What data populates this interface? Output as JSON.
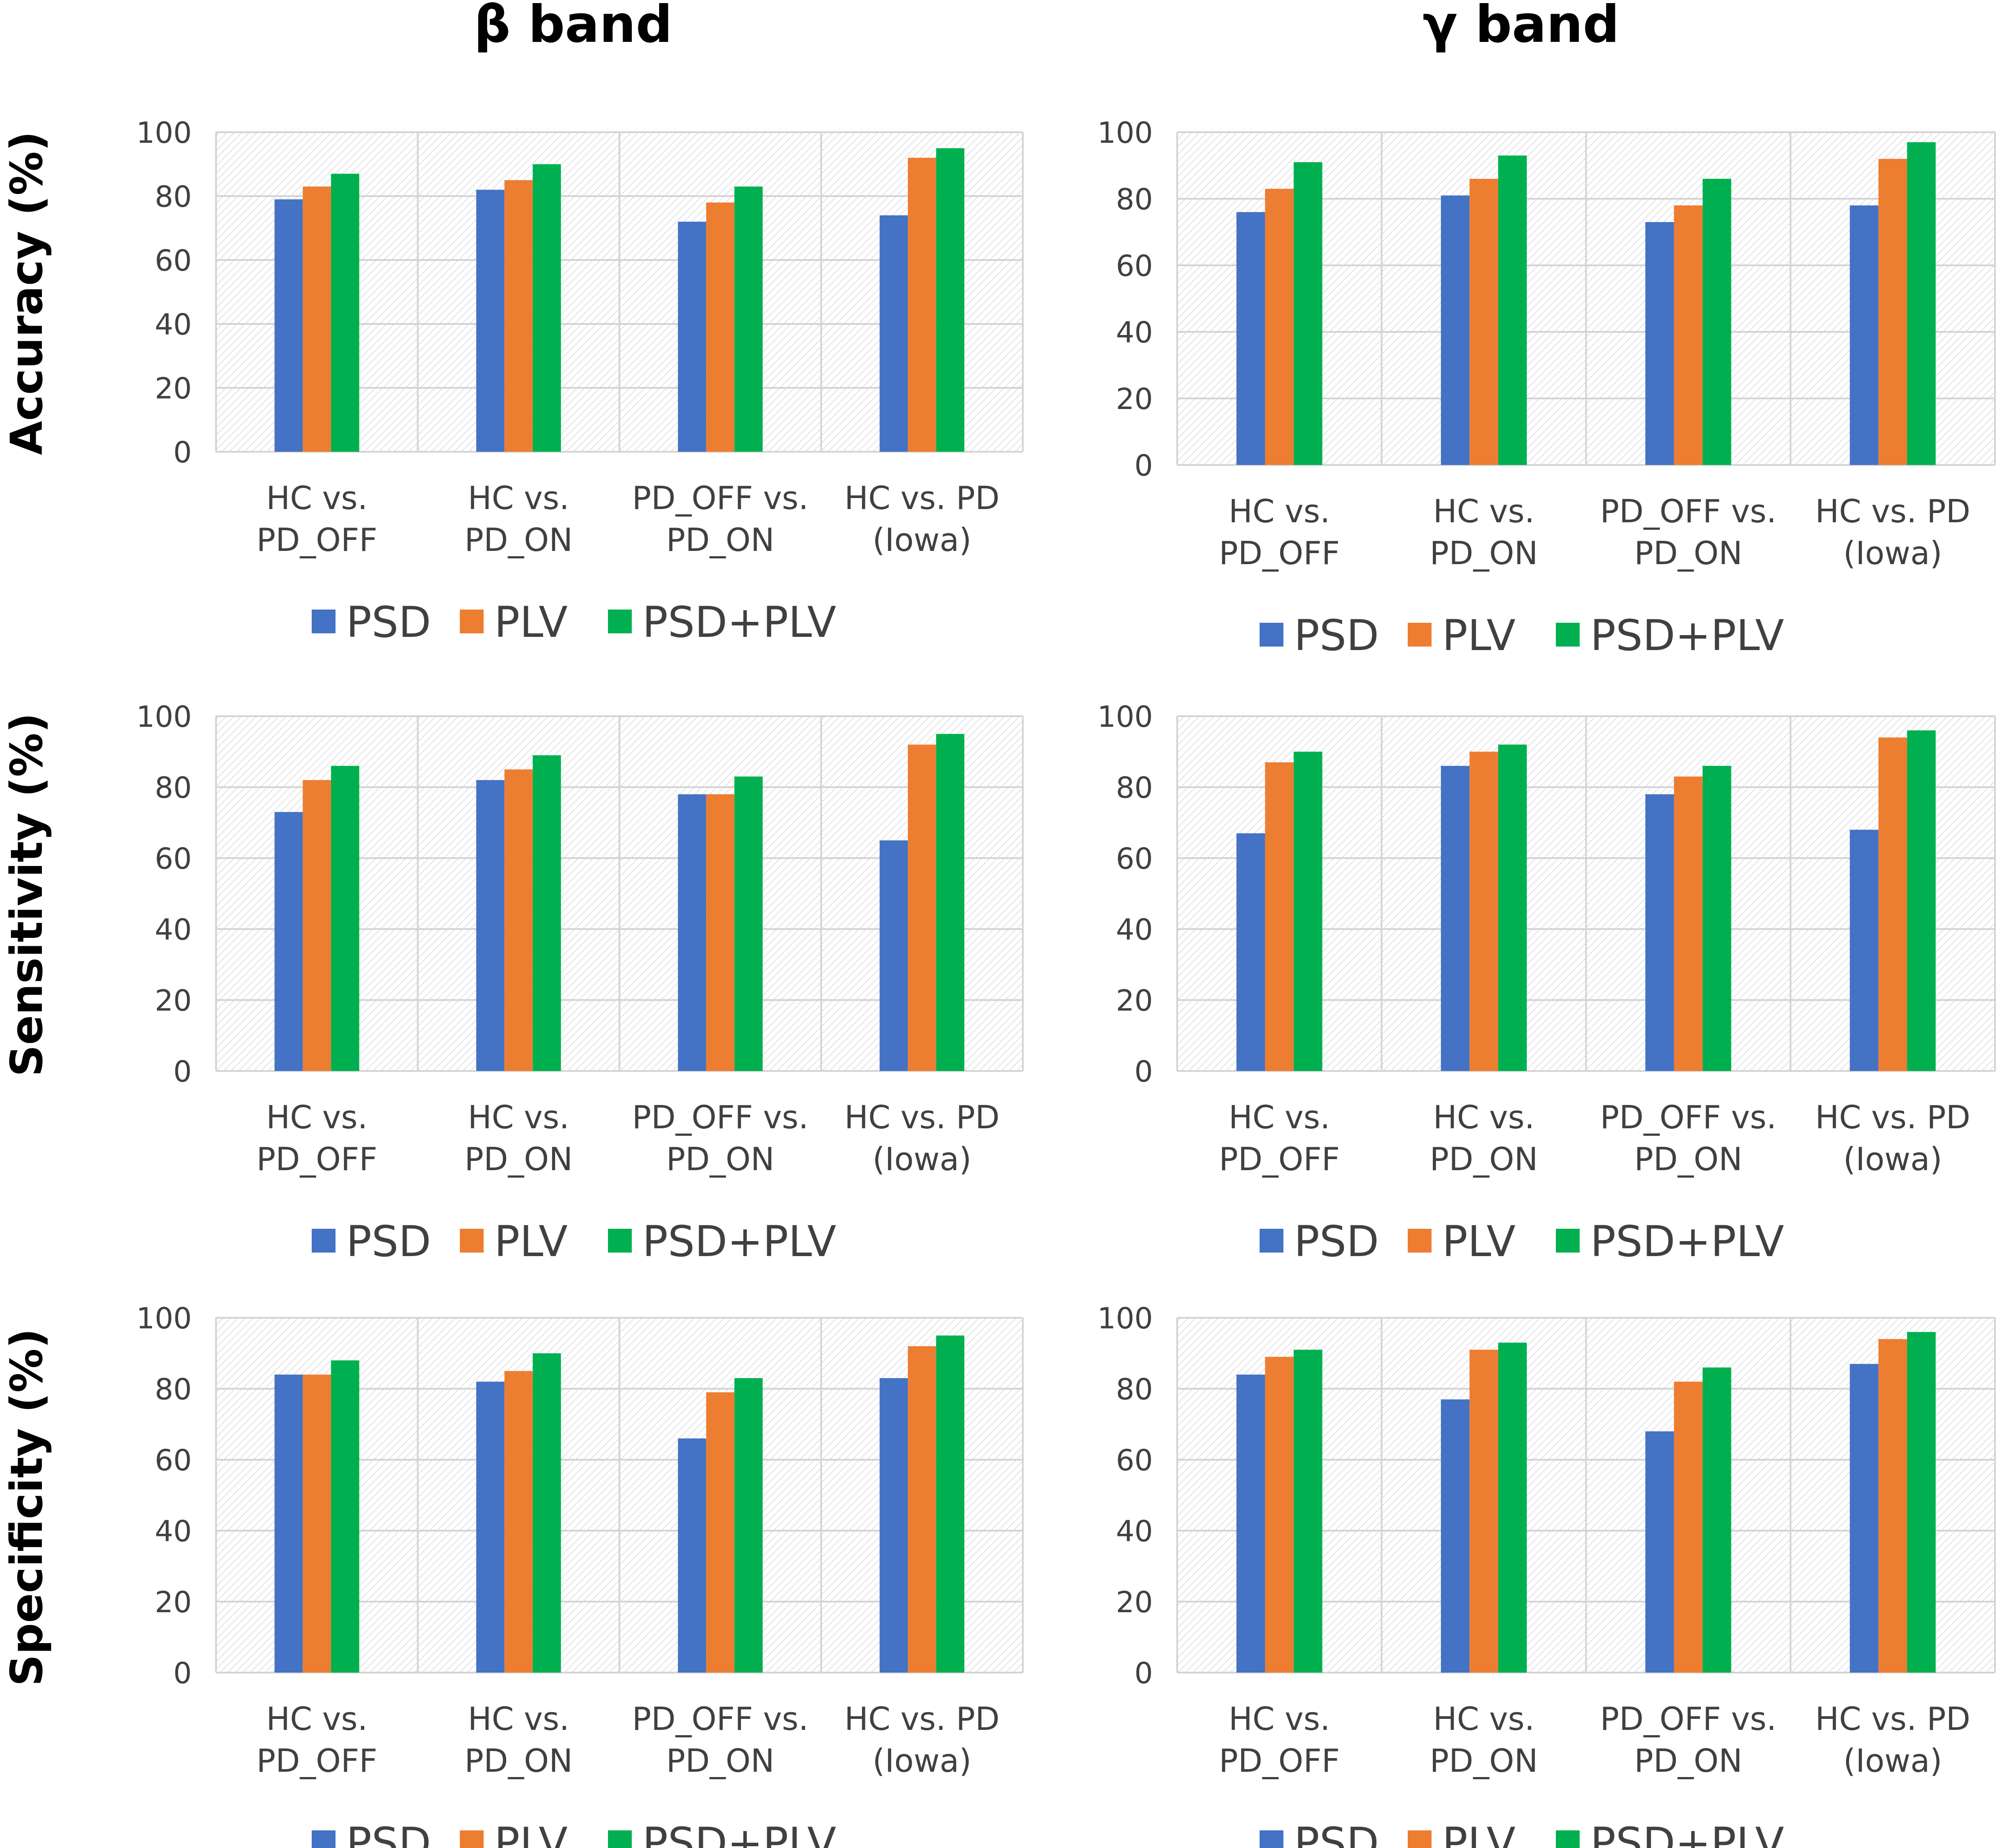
{
  "band_titles": [
    "β band",
    "γ band"
  ],
  "row_labels": [
    "Accuracy (%)",
    "Sensitivity (%)",
    "Specificity (%)"
  ],
  "legend": [
    {
      "name": "PSD",
      "color": "#4472C4"
    },
    {
      "name": "PLV",
      "color": "#ED7D31"
    },
    {
      "name": "PSD+PLV",
      "color": "#00B050"
    }
  ],
  "chart_data": [
    {
      "type": "bar",
      "band": "β band",
      "metric": "Accuracy (%)",
      "categories": [
        [
          "HC vs.",
          "PD_OFF"
        ],
        [
          "HC vs.",
          "PD_ON"
        ],
        [
          "PD_OFF vs.",
          "PD_ON"
        ],
        [
          "HC vs. PD",
          "(Iowa)"
        ]
      ],
      "series": [
        {
          "name": "PSD",
          "values": [
            79,
            82,
            72,
            74
          ]
        },
        {
          "name": "PLV",
          "values": [
            83,
            85,
            78,
            92
          ]
        },
        {
          "name": "PSD+PLV",
          "values": [
            87,
            90,
            83,
            95
          ]
        }
      ],
      "ylim": [
        0,
        100
      ],
      "yticks": [
        0,
        20,
        40,
        60,
        80,
        100
      ],
      "grid": true,
      "legend_position": "bottom"
    },
    {
      "type": "bar",
      "band": "γ band",
      "metric": "Accuracy (%)",
      "categories": [
        [
          "HC vs.",
          "PD_OFF"
        ],
        [
          "HC vs.",
          "PD_ON"
        ],
        [
          "PD_OFF vs.",
          "PD_ON"
        ],
        [
          "HC vs. PD",
          "(Iowa)"
        ]
      ],
      "series": [
        {
          "name": "PSD",
          "values": [
            76,
            81,
            73,
            78
          ]
        },
        {
          "name": "PLV",
          "values": [
            83,
            86,
            78,
            92
          ]
        },
        {
          "name": "PSD+PLV",
          "values": [
            91,
            93,
            86,
            97
          ]
        }
      ],
      "ylim": [
        0,
        100
      ],
      "yticks": [
        0,
        20,
        40,
        60,
        80,
        100
      ],
      "grid": true,
      "legend_position": "bottom"
    },
    {
      "type": "bar",
      "band": "β band",
      "metric": "Sensitivity (%)",
      "categories": [
        [
          "HC vs.",
          "PD_OFF"
        ],
        [
          "HC vs.",
          "PD_ON"
        ],
        [
          "PD_OFF vs.",
          "PD_ON"
        ],
        [
          "HC vs. PD",
          "(Iowa)"
        ]
      ],
      "series": [
        {
          "name": "PSD",
          "values": [
            73,
            82,
            78,
            65
          ]
        },
        {
          "name": "PLV",
          "values": [
            82,
            85,
            78,
            92
          ]
        },
        {
          "name": "PSD+PLV",
          "values": [
            86,
            89,
            83,
            95
          ]
        }
      ],
      "ylim": [
        0,
        100
      ],
      "yticks": [
        0,
        20,
        40,
        60,
        80,
        100
      ],
      "grid": true,
      "legend_position": "bottom"
    },
    {
      "type": "bar",
      "band": "γ band",
      "metric": "Sensitivity (%)",
      "categories": [
        [
          "HC vs.",
          "PD_OFF"
        ],
        [
          "HC vs.",
          "PD_ON"
        ],
        [
          "PD_OFF vs.",
          "PD_ON"
        ],
        [
          "HC vs. PD",
          "(Iowa)"
        ]
      ],
      "series": [
        {
          "name": "PSD",
          "values": [
            67,
            86,
            78,
            68
          ]
        },
        {
          "name": "PLV",
          "values": [
            87,
            90,
            83,
            94
          ]
        },
        {
          "name": "PSD+PLV",
          "values": [
            90,
            92,
            86,
            96
          ]
        }
      ],
      "ylim": [
        0,
        100
      ],
      "yticks": [
        0,
        20,
        40,
        60,
        80,
        100
      ],
      "grid": true,
      "legend_position": "bottom"
    },
    {
      "type": "bar",
      "band": "β band",
      "metric": "Specificity (%)",
      "categories": [
        [
          "HC vs.",
          "PD_OFF"
        ],
        [
          "HC vs.",
          "PD_ON"
        ],
        [
          "PD_OFF vs.",
          "PD_ON"
        ],
        [
          "HC vs. PD",
          "(Iowa)"
        ]
      ],
      "series": [
        {
          "name": "PSD",
          "values": [
            84,
            82,
            66,
            83
          ]
        },
        {
          "name": "PLV",
          "values": [
            84,
            85,
            79,
            92
          ]
        },
        {
          "name": "PSD+PLV",
          "values": [
            88,
            90,
            83,
            95
          ]
        }
      ],
      "ylim": [
        0,
        100
      ],
      "yticks": [
        0,
        20,
        40,
        60,
        80,
        100
      ],
      "grid": true,
      "legend_position": "bottom"
    },
    {
      "type": "bar",
      "band": "γ band",
      "metric": "Specificity (%)",
      "categories": [
        [
          "HC vs.",
          "PD_OFF"
        ],
        [
          "HC vs.",
          "PD_ON"
        ],
        [
          "PD_OFF vs.",
          "PD_ON"
        ],
        [
          "HC vs. PD",
          "(Iowa)"
        ]
      ],
      "series": [
        {
          "name": "PSD",
          "values": [
            84,
            77,
            68,
            87
          ]
        },
        {
          "name": "PLV",
          "values": [
            89,
            91,
            82,
            94
          ]
        },
        {
          "name": "PSD+PLV",
          "values": [
            91,
            93,
            86,
            96
          ]
        }
      ],
      "ylim": [
        0,
        100
      ],
      "yticks": [
        0,
        20,
        40,
        60,
        80,
        100
      ],
      "grid": true,
      "legend_position": "bottom"
    }
  ]
}
